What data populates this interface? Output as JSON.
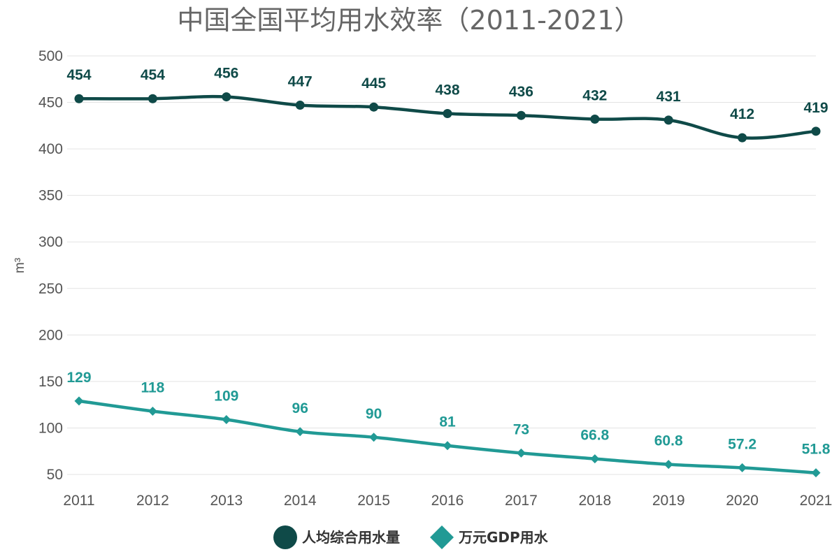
{
  "chart_data": {
    "type": "line",
    "title": "中国全国平均用水效率（2011-2021）",
    "xlabel": "",
    "ylabel": "m³",
    "x": [
      "2011",
      "2012",
      "2013",
      "2014",
      "2015",
      "2016",
      "2017",
      "2018",
      "2019",
      "2020",
      "2021"
    ],
    "ylim": [
      50,
      500
    ],
    "yticks": [
      "50",
      "100",
      "150",
      "200",
      "250",
      "300",
      "350",
      "400",
      "450",
      "500"
    ],
    "grid": true,
    "legend_position": "bottom-center",
    "series": [
      {
        "name": "人均综合用水量",
        "color": "#0f4a48",
        "marker": "circle",
        "values": [
          454,
          454,
          456,
          447,
          445,
          438,
          436,
          432,
          431,
          412,
          419
        ],
        "labels": [
          "454",
          "454",
          "456",
          "447",
          "445",
          "438",
          "436",
          "432",
          "431",
          "412",
          "419"
        ]
      },
      {
        "name": "万元GDP用水",
        "color": "#219a95",
        "marker": "diamond",
        "values": [
          129,
          118,
          109,
          96,
          90,
          81,
          73,
          66.8,
          60.8,
          57.2,
          51.8
        ],
        "labels": [
          "129",
          "118",
          "109",
          "96",
          "90",
          "81",
          "73",
          "66.8",
          "60.8",
          "57.2",
          "51.8"
        ]
      }
    ]
  }
}
